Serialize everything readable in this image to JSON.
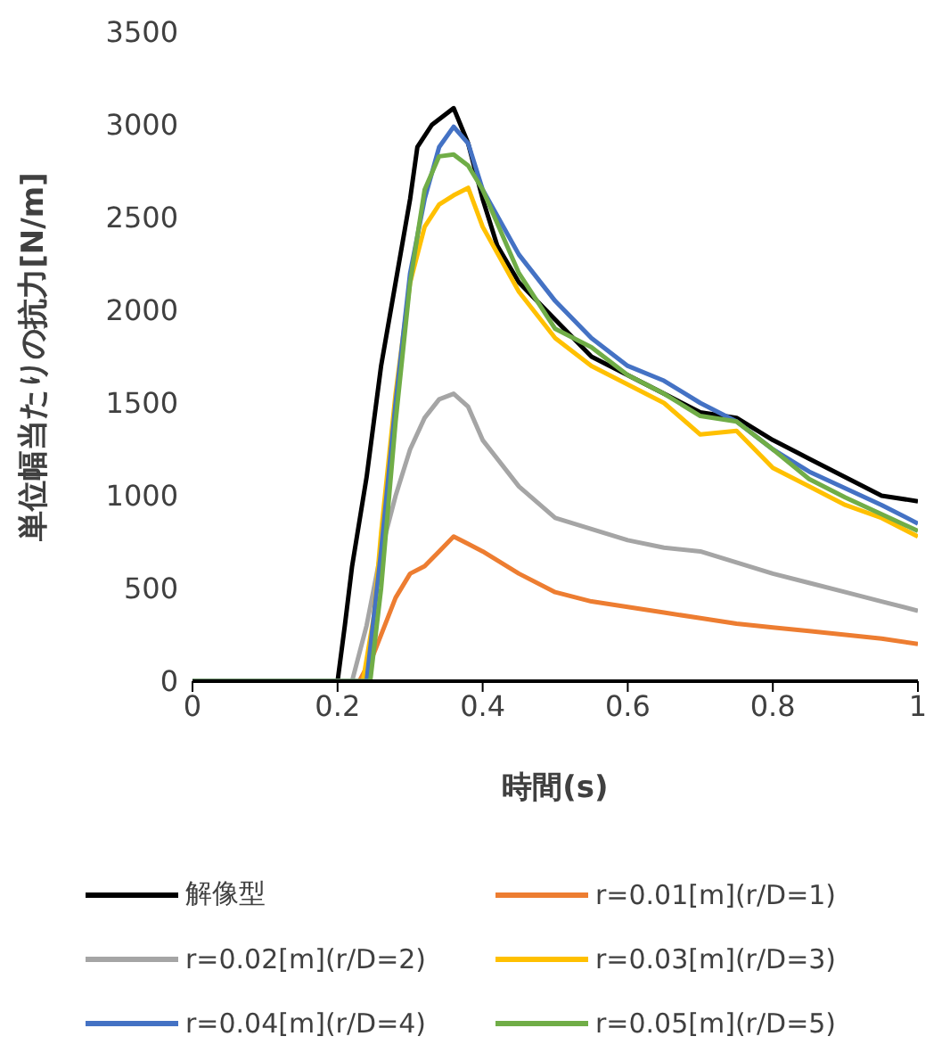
{
  "chart_data": {
    "type": "line",
    "xlabel": "時間(s)",
    "ylabel": "単位幅当たりの抗力[N/m]",
    "xlim": [
      0,
      1
    ],
    "xticks": [
      0,
      0.2,
      0.4,
      0.6,
      0.8,
      1
    ],
    "ylim": [
      0,
      3500
    ],
    "yticks": [
      0,
      500,
      1000,
      1500,
      2000,
      2500,
      3000,
      3500
    ],
    "grid": false,
    "legend": "bottom",
    "marker": "none",
    "line_style": "solid",
    "series": [
      {
        "name": "解像型",
        "color": "#000000",
        "x": [
          0,
          0.2,
          0.21,
          0.22,
          0.24,
          0.26,
          0.28,
          0.3,
          0.31,
          0.33,
          0.36,
          0.38,
          0.4,
          0.42,
          0.45,
          0.5,
          0.55,
          0.6,
          0.65,
          0.7,
          0.75,
          0.8,
          0.85,
          0.9,
          0.95,
          1
        ],
        "values": [
          0,
          0,
          300,
          620,
          1100,
          1700,
          2150,
          2600,
          2880,
          3000,
          3090,
          2900,
          2600,
          2350,
          2150,
          1950,
          1750,
          1650,
          1550,
          1450,
          1420,
          1300,
          1200,
          1100,
          1000,
          970
        ]
      },
      {
        "name": "r=0.01[m](r/D=1)",
        "color": "#ed7d31",
        "x": [
          0,
          0.23,
          0.25,
          0.28,
          0.3,
          0.32,
          0.34,
          0.36,
          0.38,
          0.4,
          0.45,
          0.5,
          0.55,
          0.6,
          0.65,
          0.7,
          0.75,
          0.8,
          0.85,
          0.9,
          0.95,
          1
        ],
        "values": [
          0,
          0,
          150,
          450,
          580,
          620,
          700,
          780,
          740,
          700,
          580,
          480,
          430,
          400,
          370,
          340,
          310,
          290,
          270,
          250,
          230,
          200
        ]
      },
      {
        "name": "r=0.02[m](r/D=2)",
        "color": "#a5a5a5",
        "x": [
          0,
          0.22,
          0.24,
          0.26,
          0.28,
          0.3,
          0.32,
          0.34,
          0.36,
          0.38,
          0.4,
          0.45,
          0.5,
          0.55,
          0.6,
          0.65,
          0.7,
          0.75,
          0.8,
          0.85,
          0.9,
          0.95,
          1
        ],
        "values": [
          0,
          0,
          300,
          700,
          1000,
          1250,
          1420,
          1520,
          1550,
          1480,
          1300,
          1050,
          880,
          820,
          760,
          720,
          700,
          640,
          580,
          530,
          480,
          430,
          380
        ]
      },
      {
        "name": "r=0.03[m](r/D=3)",
        "color": "#ffc000",
        "x": [
          0.235,
          0.25,
          0.26,
          0.28,
          0.3,
          0.32,
          0.34,
          0.36,
          0.38,
          0.4,
          0.45,
          0.5,
          0.55,
          0.6,
          0.65,
          0.7,
          0.75,
          0.8,
          0.85,
          0.9,
          0.95,
          1
        ],
        "values": [
          0,
          350,
          800,
          1550,
          2150,
          2450,
          2570,
          2620,
          2660,
          2450,
          2100,
          1850,
          1700,
          1600,
          1500,
          1330,
          1350,
          1150,
          1050,
          950,
          880,
          780
        ]
      },
      {
        "name": "r=0.04[m](r/D=4)",
        "color": "#4472c4",
        "x": [
          0,
          0.24,
          0.26,
          0.28,
          0.3,
          0.32,
          0.34,
          0.36,
          0.38,
          0.4,
          0.45,
          0.5,
          0.55,
          0.6,
          0.65,
          0.7,
          0.75,
          0.8,
          0.85,
          0.9,
          0.95,
          1
        ],
        "values": [
          0,
          0,
          700,
          1500,
          2200,
          2600,
          2880,
          2990,
          2900,
          2650,
          2300,
          2050,
          1850,
          1700,
          1620,
          1500,
          1400,
          1250,
          1130,
          1040,
          950,
          850
        ]
      },
      {
        "name": "r=0.05[m](r/D=5)",
        "color": "#70ad47",
        "x": [
          0,
          0.245,
          0.26,
          0.28,
          0.3,
          0.32,
          0.34,
          0.36,
          0.38,
          0.4,
          0.45,
          0.5,
          0.55,
          0.6,
          0.65,
          0.7,
          0.75,
          0.8,
          0.85,
          0.9,
          0.95,
          1
        ],
        "values": [
          0,
          0,
          500,
          1400,
          2150,
          2650,
          2830,
          2840,
          2780,
          2650,
          2200,
          1900,
          1800,
          1650,
          1550,
          1430,
          1400,
          1250,
          1090,
          990,
          900,
          810
        ]
      }
    ]
  }
}
